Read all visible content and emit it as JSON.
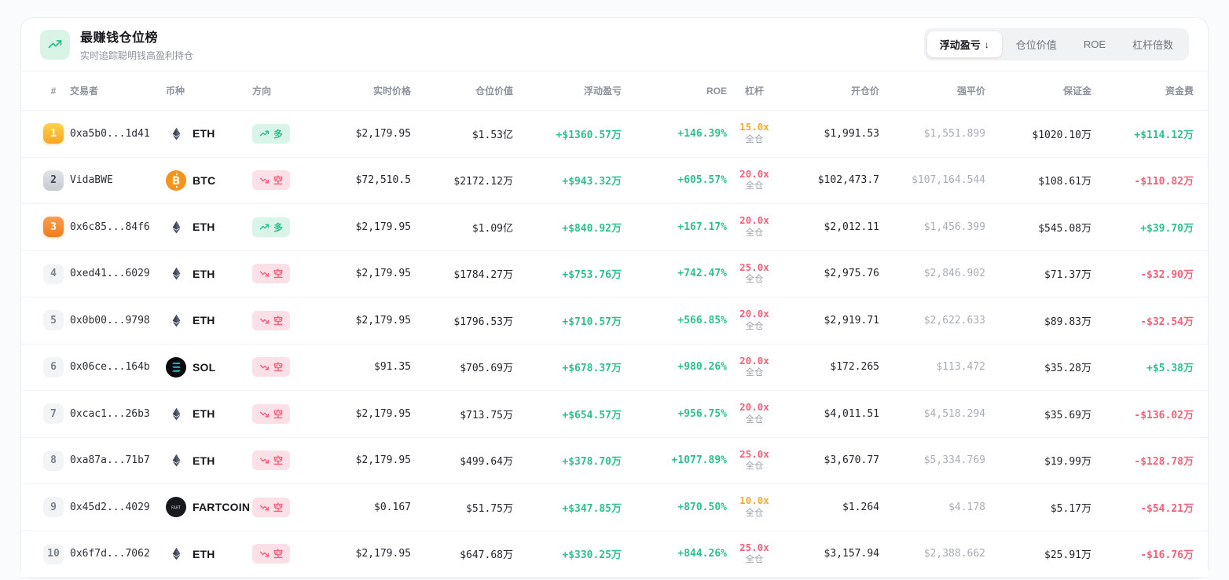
{
  "header": {
    "icon": "trending-up-icon",
    "title": "最赚钱仓位榜",
    "subtitle": "实时追踪聪明钱高盈利持仓"
  },
  "tabs": [
    {
      "key": "floating-pnl",
      "label": "浮动盈亏",
      "sort_icon": "↓",
      "active": true
    },
    {
      "key": "position-value",
      "label": "仓位价值",
      "active": false
    },
    {
      "key": "roe",
      "label": "ROE",
      "active": false
    },
    {
      "key": "leverage",
      "label": "杠杆倍数",
      "active": false
    }
  ],
  "table": {
    "columns": [
      "#",
      "交易者",
      "币种",
      "方向",
      "实时价格",
      "仓位价值",
      "浮动盈亏",
      "ROE",
      "杠杆",
      "开仓价",
      "强平价",
      "保证金",
      "资金费"
    ],
    "rows": [
      {
        "rank": "1",
        "tier": "gold",
        "trader": "0xa5b0...1d41",
        "coin": "ETH",
        "coin_icon": "eth-icon",
        "direction": "多",
        "dir": "long",
        "price": "$2,179.95",
        "position_value": "$1.53亿",
        "pnl": "+$1360.57万",
        "roe": "+146.39%",
        "leverage": "15.0x",
        "leverage_tone": "orange",
        "margin_mode": "全仓",
        "open_price": "$1,991.53",
        "liq_price": "$1,551.899",
        "margin": "$1020.10万",
        "funding": "+$114.12万",
        "funding_tone": "pos"
      },
      {
        "rank": "2",
        "tier": "silver",
        "trader": "VidaBWE",
        "coin": "BTC",
        "coin_icon": "btc-icon",
        "direction": "空",
        "dir": "short",
        "price": "$72,510.5",
        "position_value": "$2172.12万",
        "pnl": "+$943.32万",
        "roe": "+605.57%",
        "leverage": "20.0x",
        "leverage_tone": "red",
        "margin_mode": "全仓",
        "open_price": "$102,473.7",
        "liq_price": "$107,164.544",
        "margin": "$108.61万",
        "funding": "-$110.82万",
        "funding_tone": "neg"
      },
      {
        "rank": "3",
        "tier": "bronze",
        "trader": "0x6c85...84f6",
        "coin": "ETH",
        "coin_icon": "eth-icon",
        "direction": "多",
        "dir": "long",
        "price": "$2,179.95",
        "position_value": "$1.09亿",
        "pnl": "+$840.92万",
        "roe": "+167.17%",
        "leverage": "20.0x",
        "leverage_tone": "red",
        "margin_mode": "全仓",
        "open_price": "$2,012.11",
        "liq_price": "$1,456.399",
        "margin": "$545.08万",
        "funding": "+$39.70万",
        "funding_tone": "pos"
      },
      {
        "rank": "4",
        "tier": "plain",
        "trader": "0xed41...6029",
        "coin": "ETH",
        "coin_icon": "eth-icon",
        "direction": "空",
        "dir": "short",
        "price": "$2,179.95",
        "position_value": "$1784.27万",
        "pnl": "+$753.76万",
        "roe": "+742.47%",
        "leverage": "25.0x",
        "leverage_tone": "red",
        "margin_mode": "全仓",
        "open_price": "$2,975.76",
        "liq_price": "$2,846.902",
        "margin": "$71.37万",
        "funding": "-$32.90万",
        "funding_tone": "neg"
      },
      {
        "rank": "5",
        "tier": "plain",
        "trader": "0x0b00...9798",
        "coin": "ETH",
        "coin_icon": "eth-icon",
        "direction": "空",
        "dir": "short",
        "price": "$2,179.95",
        "position_value": "$1796.53万",
        "pnl": "+$710.57万",
        "roe": "+566.85%",
        "leverage": "20.0x",
        "leverage_tone": "red",
        "margin_mode": "全仓",
        "open_price": "$2,919.71",
        "liq_price": "$2,622.633",
        "margin": "$89.83万",
        "funding": "-$32.54万",
        "funding_tone": "neg"
      },
      {
        "rank": "6",
        "tier": "plain",
        "trader": "0x06ce...164b",
        "coin": "SOL",
        "coin_icon": "sol-icon",
        "direction": "空",
        "dir": "short",
        "price": "$91.35",
        "position_value": "$705.69万",
        "pnl": "+$678.37万",
        "roe": "+980.26%",
        "leverage": "20.0x",
        "leverage_tone": "red",
        "margin_mode": "全仓",
        "open_price": "$172.265",
        "liq_price": "$113.472",
        "margin": "$35.28万",
        "funding": "+$5.38万",
        "funding_tone": "pos"
      },
      {
        "rank": "7",
        "tier": "plain",
        "trader": "0xcac1...26b3",
        "coin": "ETH",
        "coin_icon": "eth-icon",
        "direction": "空",
        "dir": "short",
        "price": "$2,179.95",
        "position_value": "$713.75万",
        "pnl": "+$654.57万",
        "roe": "+956.75%",
        "leverage": "20.0x",
        "leverage_tone": "red",
        "margin_mode": "全仓",
        "open_price": "$4,011.51",
        "liq_price": "$4,518.294",
        "margin": "$35.69万",
        "funding": "-$136.02万",
        "funding_tone": "neg"
      },
      {
        "rank": "8",
        "tier": "plain",
        "trader": "0xa87a...71b7",
        "coin": "ETH",
        "coin_icon": "eth-icon",
        "direction": "空",
        "dir": "short",
        "price": "$2,179.95",
        "position_value": "$499.64万",
        "pnl": "+$378.70万",
        "roe": "+1077.89%",
        "leverage": "25.0x",
        "leverage_tone": "red",
        "margin_mode": "全仓",
        "open_price": "$3,670.77",
        "liq_price": "$5,334.769",
        "margin": "$19.99万",
        "funding": "-$128.78万",
        "funding_tone": "neg"
      },
      {
        "rank": "9",
        "tier": "plain",
        "trader": "0x45d2...4029",
        "coin": "FARTCOIN",
        "coin_icon": "fartcoin-icon",
        "direction": "空",
        "dir": "short",
        "price": "$0.167",
        "position_value": "$51.75万",
        "pnl": "+$347.85万",
        "roe": "+870.50%",
        "leverage": "10.0x",
        "leverage_tone": "orange",
        "margin_mode": "全仓",
        "open_price": "$1.264",
        "liq_price": "$4.178",
        "margin": "$5.17万",
        "funding": "-$54.21万",
        "funding_tone": "neg"
      },
      {
        "rank": "10",
        "tier": "plain",
        "trader": "0x6f7d...7062",
        "coin": "ETH",
        "coin_icon": "eth-icon",
        "direction": "空",
        "dir": "short",
        "price": "$2,179.95",
        "position_value": "$647.68万",
        "pnl": "+$330.25万",
        "roe": "+844.26%",
        "leverage": "25.0x",
        "leverage_tone": "red",
        "margin_mode": "全仓",
        "open_price": "$3,157.94",
        "liq_price": "$2,388.662",
        "margin": "$25.91万",
        "funding": "-$16.76万",
        "funding_tone": "neg"
      }
    ]
  },
  "palette": {
    "green": "#2fbf8f",
    "red": "#f2607a",
    "orange": "#f5a833",
    "btc_orange": "#f7931a"
  }
}
